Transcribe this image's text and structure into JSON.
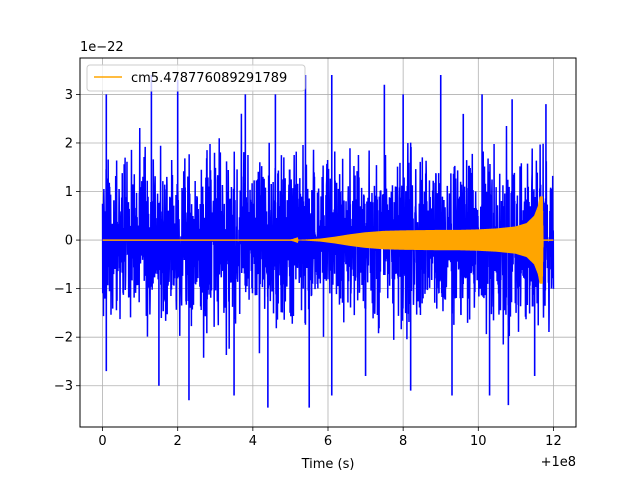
{
  "chart_data": {
    "type": "line",
    "title": "",
    "xlabel": "Time (s)",
    "ylabel": "",
    "x_offset_label": "+1e8",
    "y_scale_label": "1e−22",
    "xlim": [
      -0.6,
      12.6
    ],
    "ylim": [
      -3.85,
      3.75
    ],
    "x_ticks": [
      0,
      2,
      4,
      6,
      8,
      10,
      12
    ],
    "x_tick_labels": [
      "0",
      "2",
      "4",
      "6",
      "8",
      "10",
      "12"
    ],
    "y_ticks": [
      -3,
      -2,
      -1,
      0,
      1,
      2,
      3
    ],
    "y_tick_labels": [
      "−3",
      "−2",
      "−1",
      "0",
      "1",
      "2",
      "3"
    ],
    "grid": true,
    "legend": {
      "location": "upper left"
    },
    "series": [
      {
        "name": "",
        "color": "#0000ff",
        "kind": "noise-strain",
        "x_range": [
          0,
          12
        ],
        "envelope_typical": [
          -2.1,
          2.1
        ],
        "peaks": {
          "x": [
            0.1,
            1.3,
            2.0,
            3.8,
            4.6,
            5.4,
            6.1,
            7.5,
            8.0,
            9.0,
            9.6,
            10.1,
            10.9,
            11.8
          ],
          "y": [
            3.0,
            3.4,
            3.3,
            3.0,
            3.0,
            3.4,
            3.4,
            3.2,
            3.0,
            3.4,
            2.6,
            3.0,
            2.9,
            2.8
          ]
        },
        "troughs": {
          "x": [
            0.1,
            1.5,
            2.3,
            3.5,
            4.4,
            5.5,
            6.1,
            7.0,
            8.2,
            9.3,
            10.3,
            10.8,
            11.5
          ],
          "y": [
            -2.7,
            -3.0,
            -3.3,
            -3.2,
            -3.45,
            -3.45,
            -3.2,
            -2.8,
            -3.1,
            -3.2,
            -3.2,
            -3.4,
            -2.8
          ]
        }
      },
      {
        "name": "cm5.478776089291789",
        "color": "#ffa500",
        "kind": "chirp-template",
        "amplitude_envelope": {
          "x": [
            0,
            5.0,
            5.4,
            5.8,
            6.2,
            6.6,
            7.0,
            7.5,
            8.0,
            8.5,
            9.0,
            9.5,
            10.0,
            10.5,
            11.0,
            11.3,
            11.5,
            11.6,
            11.65,
            11.7,
            11.72,
            12.0
          ],
          "y": [
            0,
            0,
            0.01,
            0.03,
            0.07,
            0.12,
            0.16,
            0.19,
            0.2,
            0.205,
            0.21,
            0.21,
            0.22,
            0.24,
            0.28,
            0.35,
            0.5,
            0.7,
            0.9,
            0.9,
            0,
            0
          ]
        }
      }
    ]
  }
}
